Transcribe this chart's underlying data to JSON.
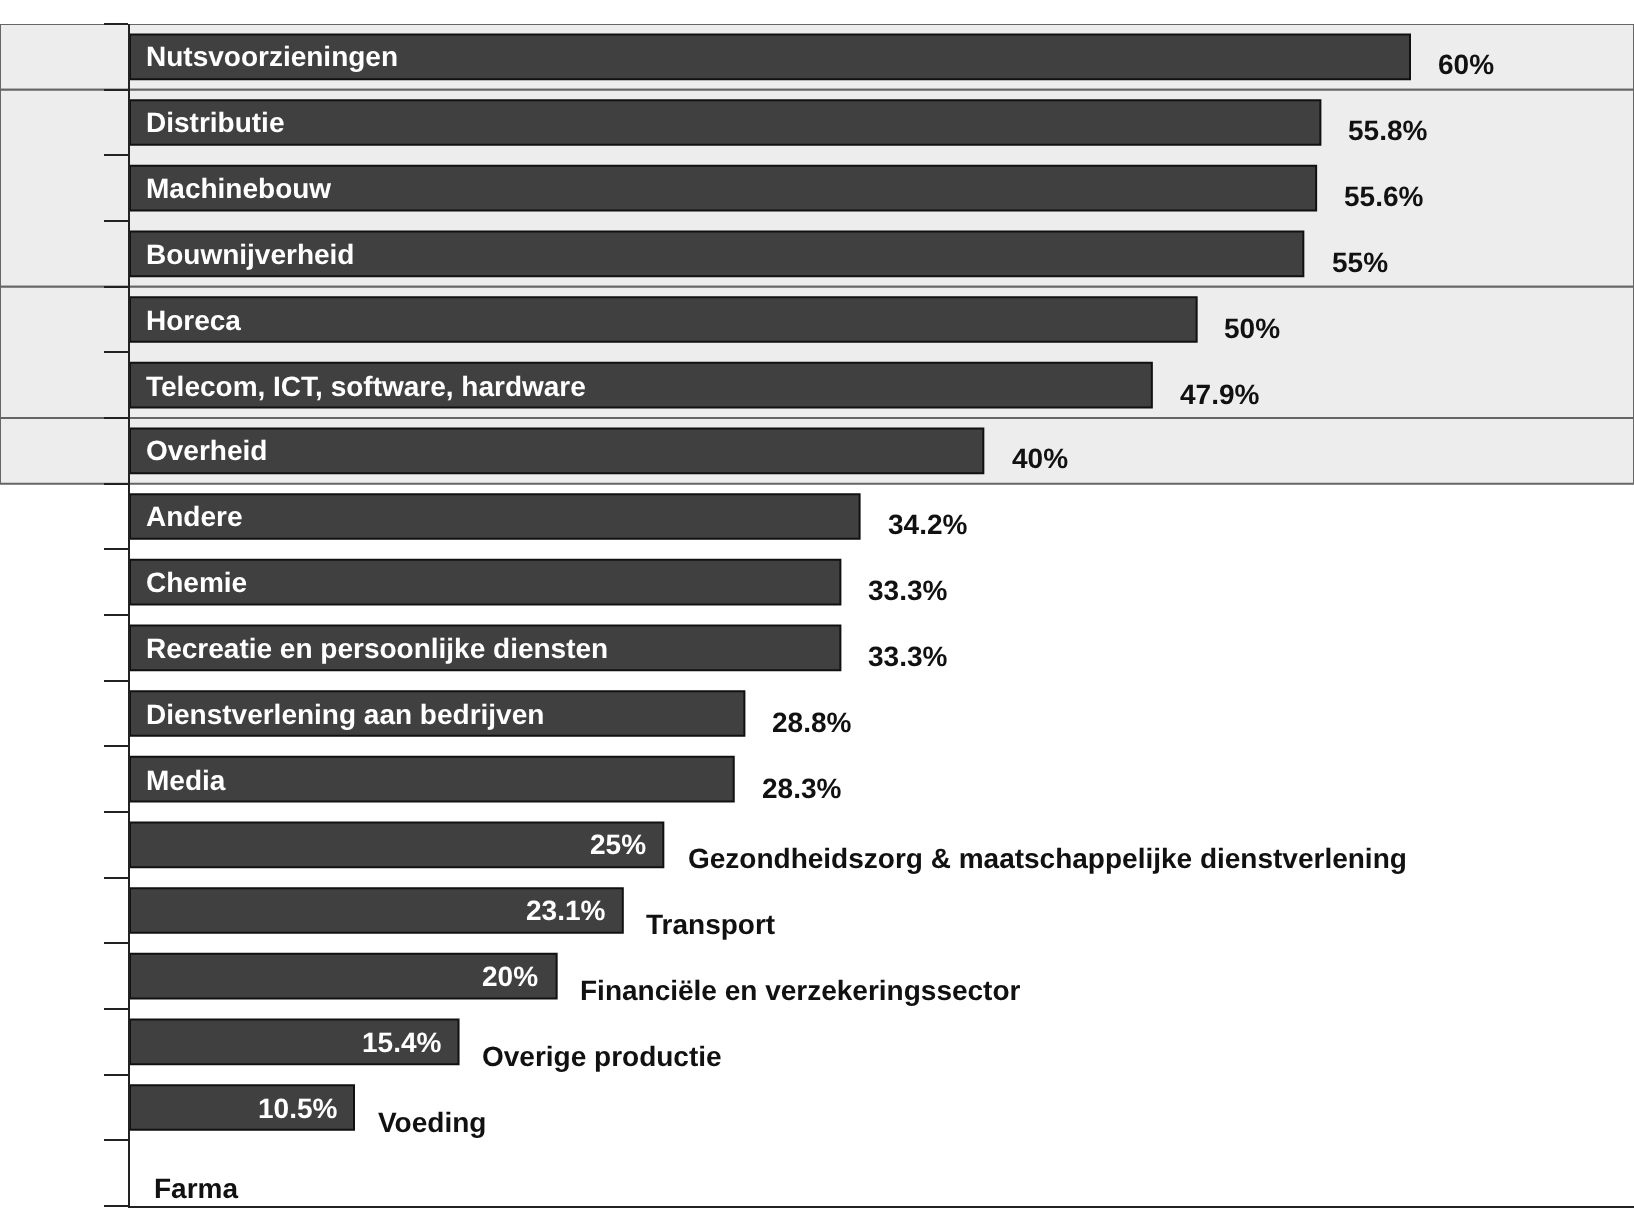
{
  "chart_data": {
    "type": "bar",
    "orientation": "horizontal",
    "categories": [
      "Nutsvoorzieningen",
      "Distributie",
      "Machinebouw",
      "Bouwnijverheid",
      "Horeca",
      "Telecom, ICT, software, hardware",
      "Overheid",
      "Andere",
      "Chemie",
      "Recreatie en persoonlijke diensten",
      "Dienstverlening aan bedrijven",
      "Media",
      "Gezondheidszorg & maatschappelijke dienstverlening",
      "Transport",
      "Financiële en verzekeringssector",
      "Overige productie",
      "Voeding",
      "Farma"
    ],
    "values": [
      60,
      55.8,
      55.6,
      55,
      50,
      47.9,
      40,
      34.2,
      33.3,
      33.3,
      28.8,
      28.3,
      25,
      23.1,
      20,
      15.4,
      10.5,
      null
    ],
    "value_labels": [
      "60%",
      "55.8%",
      "55.6%",
      "55%",
      "50%",
      "47.9%",
      "40%",
      "34.2%",
      "33.3%",
      "33.3%",
      "28.8%",
      "28.3%",
      "25%",
      "23.1%",
      "20%",
      "15.4%",
      "10.5%",
      null
    ],
    "color": "#404040",
    "bands": [
      {
        "axis": "y",
        "from": "Nutsvoorzieningen",
        "to": "Nutsvoorzieningen",
        "color": "#ededed"
      },
      {
        "axis": "y",
        "from": "Distributie",
        "to": "Bouwnijverheid",
        "color": "#ededed"
      },
      {
        "axis": "y",
        "from": "Horeca",
        "to": "Telecom, ICT, software, hardware",
        "color": "#ededed"
      },
      {
        "axis": "y",
        "from": "Overheid",
        "to": "Overheid",
        "color": "#ededed"
      }
    ],
    "tick_labels": false
  }
}
